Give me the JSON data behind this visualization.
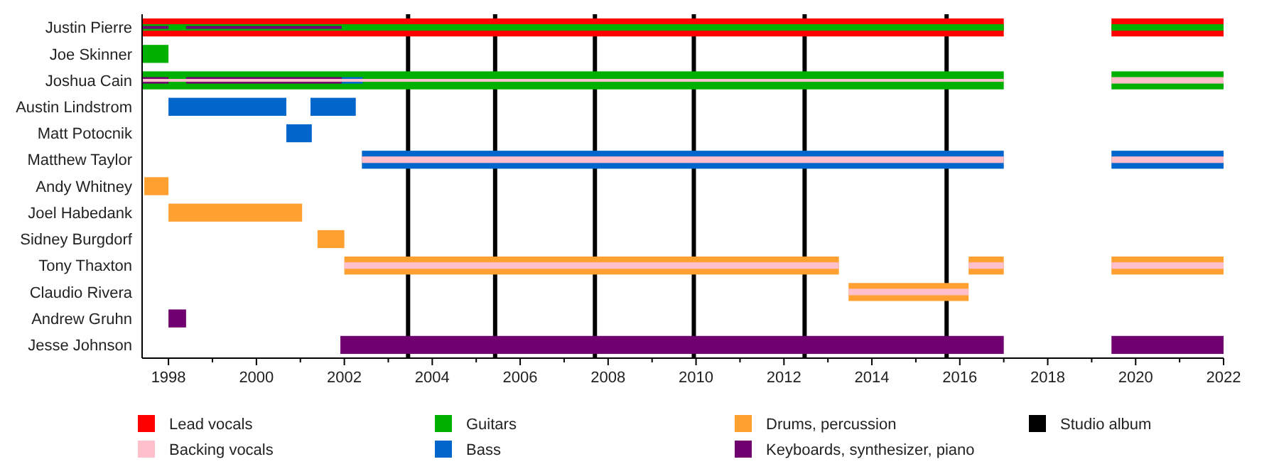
{
  "chart_data": {
    "type": "bar",
    "orientation": "horizontal",
    "categories": [
      "Justin Pierre",
      "Joe Skinner",
      "Joshua Cain",
      "Austin Lindstrom",
      "Matt Potocnik",
      "Matthew Taylor",
      "Andy Whitney",
      "Joel Habedank",
      "Sidney Burgdorf",
      "Tony Thaxton",
      "Claudio Rivera",
      "Andrew Gruhn",
      "Jesse Johnson"
    ],
    "xlim": [
      1997.4,
      2022
    ],
    "xticks": [
      1998,
      {
        "value": 1999,
        "label": null
      },
      2000,
      {
        "value": 2001,
        "label": null
      },
      2002,
      {
        "value": 2003,
        "label": null
      },
      2004,
      {
        "value": 2005,
        "label": null
      },
      2006,
      {
        "value": 2007,
        "label": null
      },
      2008,
      {
        "value": 2009,
        "label": null
      },
      2010,
      {
        "value": 2011,
        "label": null
      },
      2012,
      {
        "value": 2013,
        "label": null
      },
      2014,
      {
        "value": 2015,
        "label": null
      },
      2016,
      {
        "value": 2017,
        "label": null
      },
      2018,
      {
        "value": 2019,
        "label": null
      },
      2020,
      {
        "value": 2021,
        "label": null
      },
      2022
    ],
    "grid": false,
    "legend": "bottom",
    "series": [
      {
        "name": "Lead vocals",
        "color": "#ff0000",
        "base": [
          1997.4,
          null,
          null,
          null,
          null,
          null,
          null,
          null,
          null,
          null,
          null,
          null,
          null
        ],
        "values": [
          19.6,
          null,
          null,
          null,
          null,
          null,
          null,
          null,
          null,
          null,
          null,
          null,
          null
        ]
      },
      {
        "name": "Backing vocals",
        "color": "#ffc0cb",
        "values": [
          null,
          null,
          null,
          null,
          null,
          null,
          null,
          null,
          null,
          null,
          null,
          null,
          null
        ]
      },
      {
        "name": "Guitars",
        "color": "#00b000",
        "base": [
          1997.4,
          1997.4,
          1997.4,
          null,
          null,
          null,
          null,
          null,
          null,
          null,
          null,
          null,
          null
        ],
        "values": [
          19.6,
          0.6,
          19.6,
          null,
          null,
          null,
          null,
          null,
          null,
          null,
          null,
          null,
          null
        ]
      },
      {
        "name": "Bass",
        "color": "#0066cc",
        "base": [
          null,
          null,
          2001.94,
          1998,
          2000.68,
          2002.4,
          null,
          null,
          null,
          null,
          null,
          null,
          null
        ],
        "values": [
          null,
          null,
          0.48,
          2.68,
          0.58,
          14.6,
          null,
          null,
          null,
          null,
          null,
          null,
          null
        ]
      },
      {
        "name": "Drums, percussion",
        "color": "#ffa030",
        "base": [
          null,
          null,
          null,
          null,
          null,
          null,
          1997.45,
          1998,
          2001.39,
          2002,
          2013.47,
          null,
          null
        ],
        "values": [
          null,
          null,
          null,
          null,
          null,
          null,
          0.55,
          3.04,
          0.61,
          11.25,
          2.73,
          null,
          null
        ]
      },
      {
        "name": "Keyboards, synthesizer, piano",
        "color": "#700070",
        "base": [
          1997.4,
          null,
          1997.4,
          null,
          null,
          null,
          null,
          null,
          null,
          null,
          null,
          1998,
          2001.91
        ],
        "values": [
          0.6,
          null,
          0.6,
          null,
          null,
          null,
          null,
          null,
          null,
          null,
          null,
          0.4,
          15.09
        ]
      },
      {
        "color": "#ff0000",
        "base": [
          2019.45,
          null,
          null,
          null,
          null,
          null,
          null,
          null,
          null,
          null,
          null,
          null,
          null
        ],
        "values": [
          2.55,
          null,
          null,
          null,
          null,
          null,
          null,
          null,
          null,
          null,
          null,
          null,
          null
        ]
      },
      {
        "color": "#00b000",
        "base": [
          2019.45,
          null,
          2019.45,
          null,
          null,
          null,
          null,
          null,
          null,
          null,
          null,
          null,
          null
        ],
        "values": [
          2.55,
          null,
          2.55,
          null,
          null,
          null,
          null,
          null,
          null,
          null,
          null,
          null,
          null
        ]
      },
      {
        "color": "#0066cc",
        "base": [
          null,
          null,
          null,
          2001.23,
          null,
          2019.45,
          null,
          null,
          null,
          null,
          null,
          null,
          null
        ],
        "values": [
          null,
          null,
          null,
          1.03,
          null,
          2.55,
          null,
          null,
          null,
          null,
          null,
          null,
          null
        ]
      },
      {
        "color": "#ffa030",
        "base": [
          null,
          null,
          null,
          null,
          null,
          null,
          null,
          null,
          null,
          2016.2,
          null,
          null,
          null
        ],
        "values": [
          null,
          null,
          null,
          null,
          null,
          null,
          null,
          null,
          null,
          0.8,
          null,
          null,
          null
        ]
      },
      {
        "color": "#ffa030",
        "base": [
          null,
          null,
          null,
          null,
          null,
          null,
          null,
          null,
          null,
          2019.45,
          null,
          null,
          null
        ],
        "values": [
          null,
          null,
          null,
          null,
          null,
          null,
          null,
          null,
          null,
          2.55,
          null,
          null,
          null
        ]
      },
      {
        "color": "#700070",
        "base": [
          1998.4,
          null,
          1998.4,
          null,
          null,
          null,
          null,
          null,
          null,
          null,
          null,
          null,
          2019.45
        ],
        "values": [
          3.54,
          null,
          3.54,
          null,
          null,
          null,
          null,
          null,
          null,
          null,
          null,
          null,
          2.55
        ]
      },
      {
        "color": "#ffc0cb",
        "base": [
          null,
          null,
          1997.4,
          null,
          null,
          2002.4,
          null,
          null,
          null,
          2002,
          2013.47,
          null,
          null
        ],
        "values": [
          null,
          null,
          19.6,
          null,
          null,
          14.6,
          null,
          null,
          null,
          11.25,
          2.73,
          null,
          null
        ]
      },
      {
        "color": "#ffc0cb",
        "base": [
          null,
          null,
          2019.45,
          null,
          null,
          2019.45,
          null,
          null,
          null,
          2016.2,
          null,
          null,
          null
        ],
        "values": [
          null,
          null,
          2.55,
          null,
          null,
          2.55,
          null,
          null,
          null,
          0.8,
          null,
          null,
          null
        ]
      },
      {
        "color": "#ffc0cb",
        "base": [
          null,
          null,
          null,
          null,
          null,
          null,
          null,
          null,
          null,
          2019.45,
          null,
          null,
          null
        ],
        "values": [
          null,
          null,
          null,
          null,
          null,
          null,
          null,
          null,
          null,
          2.55,
          null,
          null,
          null
        ]
      }
    ],
    "ref_lines": [
      {
        "axis": "x",
        "value": 2003.45,
        "label": "Studio album",
        "color": "#000000"
      },
      {
        "axis": "x",
        "value": 2005.43,
        "color": "#000000"
      },
      {
        "axis": "x",
        "value": 2007.7,
        "color": "#000000"
      },
      {
        "axis": "x",
        "value": 2009.95,
        "color": "#000000"
      },
      {
        "axis": "x",
        "value": 2012.47,
        "color": "#000000"
      },
      {
        "axis": "x",
        "value": 2015.7,
        "color": "#000000"
      }
    ]
  }
}
